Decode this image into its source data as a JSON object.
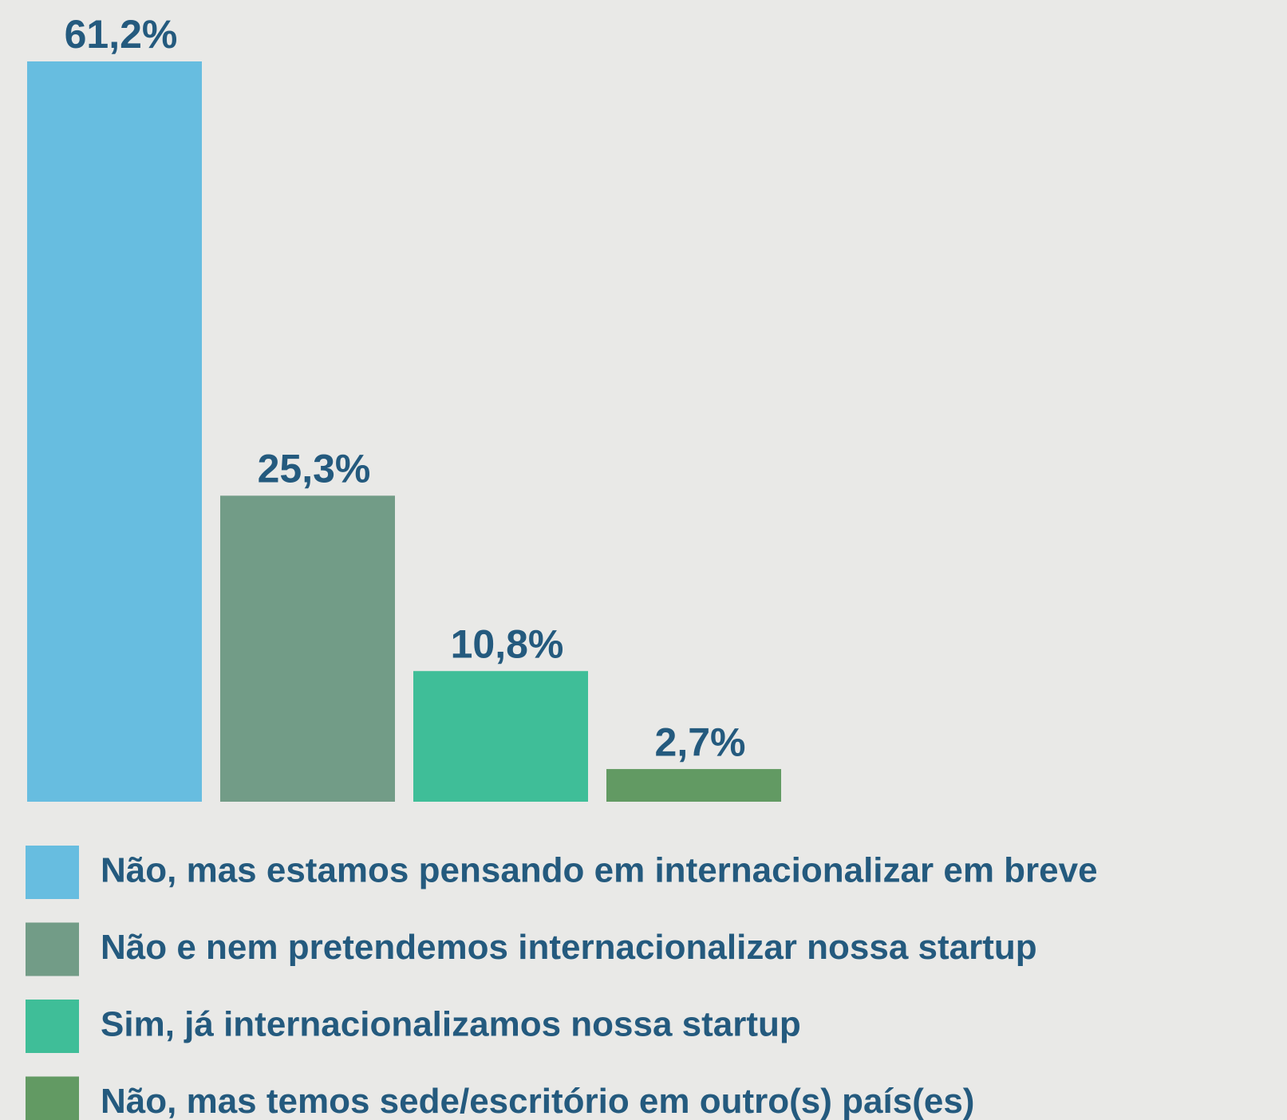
{
  "chart_data": {
    "type": "bar",
    "categories": [
      "Não, mas estamos pensando em internacionalizar em breve",
      "Não e nem pretendemos internacionalizar nossa startup",
      "Sim, já internacionalizamos nossa startup",
      "Não, mas temos sede/escritório em outro(s) país(es)"
    ],
    "values": [
      61.2,
      25.3,
      10.8,
      2.7
    ],
    "value_labels": [
      "61,2%",
      "25,3%",
      "10,8%",
      "2,7%"
    ],
    "colors": [
      "#67bde0",
      "#729c87",
      "#3fbe98",
      "#629a63"
    ],
    "legend": "bottom"
  }
}
